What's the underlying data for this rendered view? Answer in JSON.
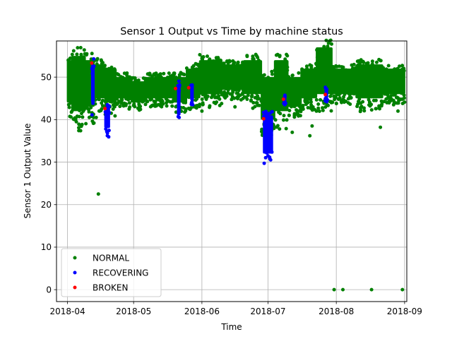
{
  "chart_data": {
    "type": "scatter",
    "title": "Sensor 1 Output vs Time by machine status",
    "xlabel": "Time",
    "ylabel": "Sensor 1 Output Value",
    "x_ticks": [
      "2018-04",
      "2018-05",
      "2018-06",
      "2018-07",
      "2018-08",
      "2018-09"
    ],
    "y_ticks": [
      0,
      10,
      20,
      30,
      40,
      50
    ],
    "xlim": [
      "2018-03-27",
      "2018-09-02"
    ],
    "ylim": [
      -2.8,
      58.5
    ],
    "grid": true,
    "legend_placement": "lower-left",
    "series": [
      {
        "name": "NORMAL",
        "color": "#008000",
        "bands": [
          [
            "2018-04-01",
            "2018-04-03",
            44,
            54
          ],
          [
            "2018-04-03",
            "2018-04-09",
            42,
            55
          ],
          [
            "2018-04-09",
            "2018-04-13",
            43,
            54
          ],
          [
            "2018-04-13",
            "2018-04-18",
            45,
            53
          ],
          [
            "2018-04-18",
            "2018-04-23",
            44,
            52
          ],
          [
            "2018-04-23",
            "2018-04-30",
            45,
            50
          ],
          [
            "2018-04-30",
            "2018-05-06",
            44,
            49
          ],
          [
            "2018-05-06",
            "2018-05-19",
            45,
            50
          ],
          [
            "2018-05-19",
            "2018-05-25",
            44,
            50
          ],
          [
            "2018-05-25",
            "2018-05-31",
            45,
            52
          ],
          [
            "2018-05-31",
            "2018-06-10",
            46,
            54
          ],
          [
            "2018-06-10",
            "2018-06-20",
            47,
            53
          ],
          [
            "2018-06-20",
            "2018-06-28",
            46,
            54
          ],
          [
            "2018-06-28",
            "2018-07-04",
            40,
            50
          ],
          [
            "2018-07-04",
            "2018-07-10",
            42,
            54
          ],
          [
            "2018-07-10",
            "2018-07-16",
            43,
            50
          ],
          [
            "2018-07-16",
            "2018-07-23",
            45,
            52
          ],
          [
            "2018-07-23",
            "2018-07-30",
            46,
            57
          ],
          [
            "2018-07-30",
            "2018-08-10",
            46,
            52
          ],
          [
            "2018-08-10",
            "2018-08-22",
            45,
            53
          ],
          [
            "2018-08-22",
            "2018-09-01",
            46,
            52
          ]
        ],
        "points": [
          [
            "2018-04-05",
            39.5
          ],
          [
            "2018-04-13",
            39.2
          ],
          [
            "2018-04-14",
            40.5
          ],
          [
            "2018-04-15",
            22.5
          ],
          [
            "2018-04-29",
            42.5
          ],
          [
            "2018-06-01",
            42.0
          ],
          [
            "2018-06-03",
            44.8
          ],
          [
            "2018-06-07",
            45.2
          ],
          [
            "2018-06-16",
            43.0
          ],
          [
            "2018-07-12",
            37.0
          ],
          [
            "2018-07-13",
            41.0
          ],
          [
            "2018-07-15",
            44.5
          ],
          [
            "2018-07-18",
            47.5
          ],
          [
            "2018-07-20",
            36.2
          ],
          [
            "2018-07-21",
            38.5
          ],
          [
            "2018-07-23",
            42.0
          ],
          [
            "2018-07-31",
            0.0
          ],
          [
            "2018-08-02",
            44.8
          ],
          [
            "2018-08-04",
            0.0
          ],
          [
            "2018-08-12",
            42.8
          ],
          [
            "2018-08-13",
            44.2
          ],
          [
            "2018-08-15",
            45.7
          ],
          [
            "2018-08-17",
            0.0
          ],
          [
            "2018-08-19",
            45.5
          ],
          [
            "2018-08-21",
            38.2
          ],
          [
            "2018-08-24",
            44.0
          ],
          [
            "2018-08-27",
            43.5
          ],
          [
            "2018-08-29",
            42.0
          ],
          [
            "2018-08-31",
            0.0
          ],
          [
            "2018-08-31",
            44.8
          ]
        ]
      },
      {
        "name": "RECOVERING",
        "color": "#0000ff",
        "bands": [
          [
            "2018-04-12",
            "2018-04-13",
            44.0,
            53.0
          ],
          [
            "2018-04-18",
            "2018-04-20",
            38.0,
            43.0
          ],
          [
            "2018-05-21",
            "2018-05-22",
            41.0,
            48.0
          ],
          [
            "2018-05-27",
            "2018-05-28",
            44.5,
            48.5
          ],
          [
            "2018-06-29",
            "2018-07-03",
            32.0,
            41.0
          ],
          [
            "2018-07-08",
            "2018-07-09",
            44.0,
            45.5
          ],
          [
            "2018-07-27",
            "2018-07-28",
            45.0,
            47.5
          ]
        ],
        "points": []
      },
      {
        "name": "BROKEN",
        "color": "#ff0000",
        "bands": [],
        "points": [
          [
            "2018-04-12",
            53.3
          ],
          [
            "2018-04-18",
            42.6
          ],
          [
            "2018-05-20",
            47.3
          ],
          [
            "2018-05-26",
            47.5
          ],
          [
            "2018-06-29",
            40.2
          ],
          [
            "2018-07-08",
            44.8
          ],
          [
            "2018-07-27",
            45.9
          ]
        ]
      }
    ]
  }
}
